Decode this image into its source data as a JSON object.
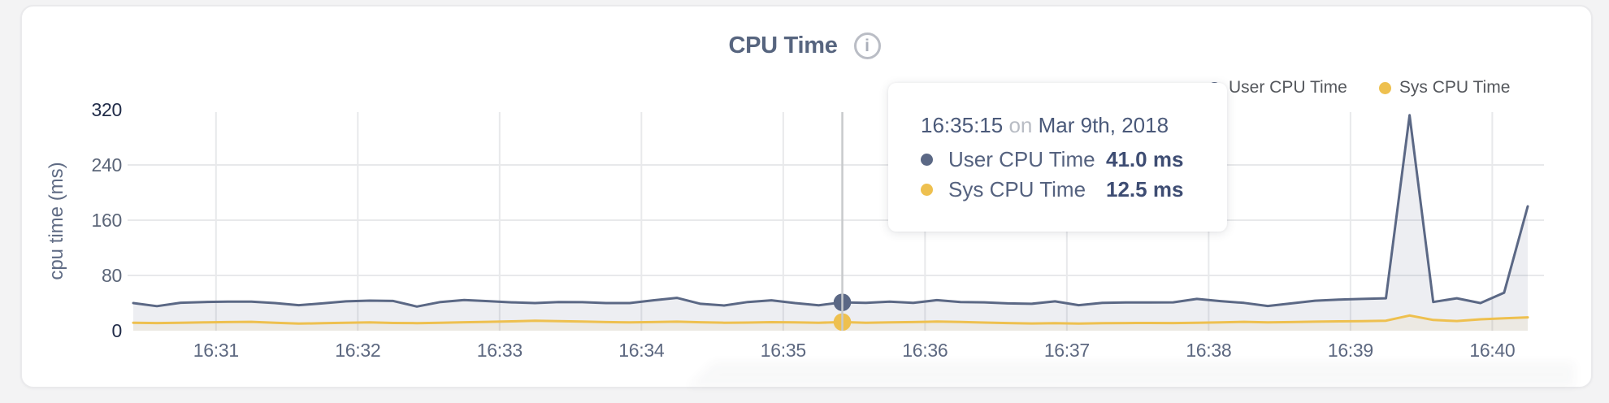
{
  "header": {
    "title": "CPU Time"
  },
  "legend": {
    "items": [
      {
        "label": "User CPU Time",
        "color": "#5b6885"
      },
      {
        "label": "Sys CPU Time",
        "color": "#eec04f"
      }
    ]
  },
  "tooltip": {
    "time": "16:35:15",
    "separator": "on",
    "date": "Mar 9th, 2018",
    "rows": [
      {
        "label": "User CPU Time",
        "value": "41.0 ms",
        "color": "#5b6885"
      },
      {
        "label": "Sys CPU Time",
        "value": "12.5 ms",
        "color": "#eec04f"
      }
    ]
  },
  "chart_data": {
    "type": "area",
    "title": "CPU Time",
    "xlabel": "",
    "ylabel": "cpu time (ms)",
    "ylim": [
      0,
      320
    ],
    "y_ticks": [
      0,
      80,
      160,
      240,
      320
    ],
    "x_ticks": [
      "16:31",
      "16:32",
      "16:33",
      "16:34",
      "16:35",
      "16:36",
      "16:37",
      "16:38",
      "16:39",
      "16:40"
    ],
    "x_start": "16:30:25",
    "x_end": "16:40:15",
    "interval_seconds": 10,
    "grid": true,
    "legend_position": "top-right",
    "hover_index": 30,
    "series": [
      {
        "name": "User CPU Time",
        "color": "#5b6885",
        "fill": "rgba(90,103,134,0.11)",
        "values": [
          40,
          35.5,
          40.5,
          41.5,
          42,
          42,
          40,
          37,
          39.5,
          42.5,
          43.5,
          43,
          35,
          41.5,
          44.5,
          42.8,
          41,
          40,
          41.5,
          41.3,
          40,
          40,
          44,
          47.5,
          39,
          36.5,
          41.5,
          44,
          40,
          36.8,
          41,
          40.2,
          42,
          40.2,
          44.2,
          41.5,
          41,
          39.5,
          39,
          42.5,
          37,
          40.2,
          40.8,
          40.8,
          41,
          46,
          42.8,
          40.2,
          35.8,
          39.5,
          43.4,
          45,
          46,
          47,
          312,
          41.5,
          47,
          40,
          55,
          180
        ]
      },
      {
        "name": "Sys CPU Time",
        "color": "#eec04f",
        "fill": "rgba(238,199,98,0.10)",
        "values": [
          11.5,
          11,
          11.5,
          12,
          12.5,
          12.8,
          11.5,
          10.2,
          10.8,
          11.5,
          12,
          11.2,
          10.9,
          11.5,
          12.2,
          12.8,
          13.5,
          14.5,
          13.8,
          13.3,
          12.5,
          12,
          12.5,
          13,
          12.2,
          11.5,
          11.8,
          12.3,
          12,
          11.5,
          12.5,
          11.5,
          12,
          12.5,
          13.2,
          12.6,
          11.8,
          11,
          10.5,
          10.8,
          10.2,
          10.8,
          11,
          11.2,
          11,
          11.5,
          12,
          12.8,
          12.1,
          12.5,
          13,
          13.5,
          13.9,
          14.5,
          22,
          15.5,
          14,
          16.5,
          18,
          19.3
        ]
      }
    ]
  },
  "colors": {
    "page_bg": "#f3f3f4",
    "card_bg": "#ffffff",
    "grid_line": "#e8e9eb",
    "crosshair": "#c8cacc",
    "axis_label_strong": "#212c49",
    "axis_label_mid": "#5b6578",
    "x_label": "#5d6880"
  }
}
